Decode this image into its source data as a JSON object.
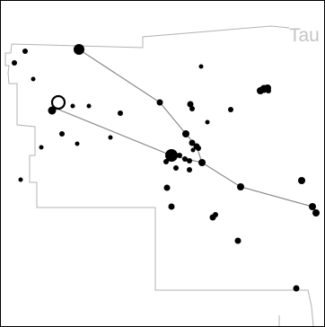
{
  "neighbor_label": "Tau",
  "colors": {
    "boundary": "#b3b3b3",
    "figure_line": "#8a8a8a",
    "star": "#000000",
    "label": "#c4c4c4",
    "frame": "#000000"
  },
  "marker_icon": "open-circle-marker"
}
